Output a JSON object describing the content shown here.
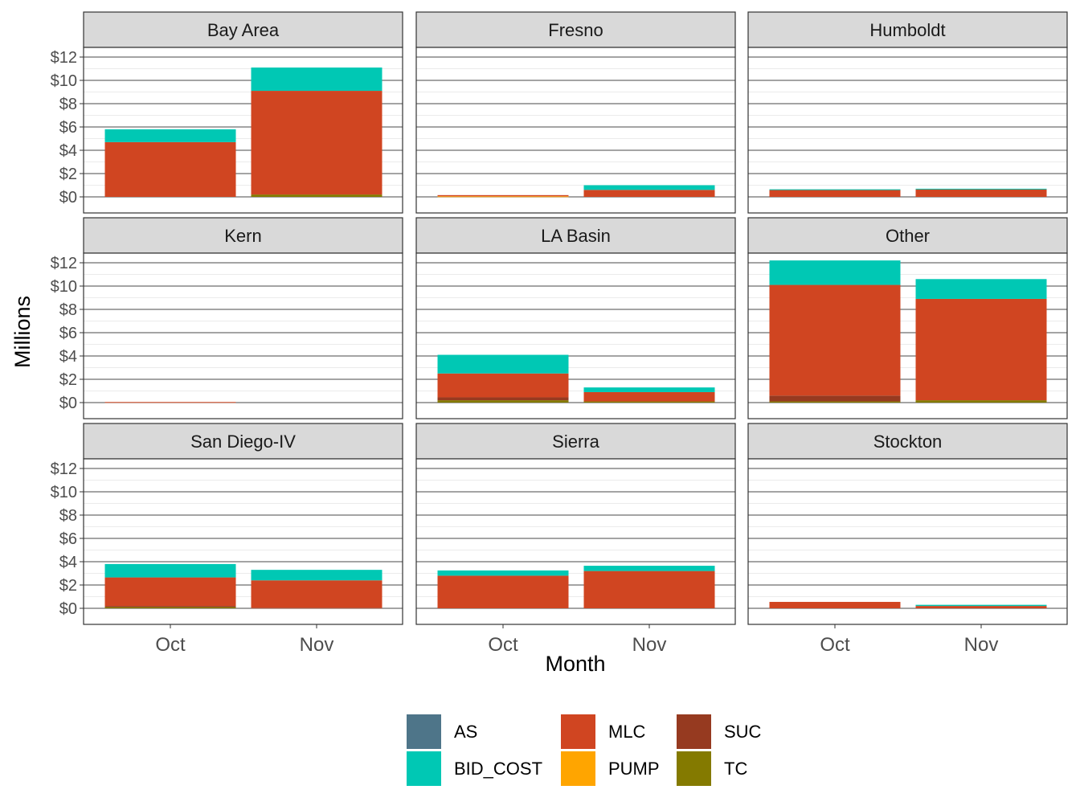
{
  "chart_data": {
    "type": "bar",
    "stacked": true,
    "facets": [
      "Bay Area",
      "Fresno",
      "Humboldt",
      "Kern",
      "LA Basin",
      "Other",
      "San Diego-IV",
      "Sierra",
      "Stockton"
    ],
    "categories": [
      "Oct",
      "Nov"
    ],
    "xlabel": "Month",
    "ylabel": "Millions",
    "ylim": [
      0,
      12
    ],
    "y_ticks": [
      0,
      2,
      4,
      6,
      8,
      10,
      12
    ],
    "y_tick_labels": [
      "$0",
      "$2",
      "$4",
      "$6",
      "$8",
      "$10",
      "$12"
    ],
    "grid": true,
    "legend_position": "bottom",
    "stack_order": [
      "TC",
      "PUMP",
      "AS",
      "SUC",
      "MLC",
      "BID_COST"
    ],
    "series_colors": {
      "AS": "#4e7589",
      "BID_COST": "#00c8b4",
      "MLC": "#d04521",
      "PUMP": "#ffa500",
      "SUC": "#963a20",
      "TC": "#847a00"
    },
    "legend": {
      "columns": [
        [
          "AS",
          "BID_COST"
        ],
        [
          "MLC",
          "PUMP"
        ],
        [
          "SUC",
          "TC"
        ]
      ]
    },
    "values": {
      "Bay Area": {
        "Oct": {
          "TC": 0.0,
          "PUMP": 0.0,
          "AS": 0.0,
          "SUC": 0.0,
          "MLC": 4.7,
          "BID_COST": 1.1
        },
        "Nov": {
          "TC": 0.2,
          "PUMP": 0.0,
          "AS": 0.0,
          "SUC": 0.0,
          "MLC": 8.9,
          "BID_COST": 2.0
        }
      },
      "Fresno": {
        "Oct": {
          "TC": 0.0,
          "PUMP": 0.05,
          "AS": 0.0,
          "SUC": 0.0,
          "MLC": 0.1,
          "BID_COST": 0.0
        },
        "Nov": {
          "TC": 0.0,
          "PUMP": 0.0,
          "AS": 0.0,
          "SUC": 0.0,
          "MLC": 0.6,
          "BID_COST": 0.4
        }
      },
      "Humboldt": {
        "Oct": {
          "TC": 0.0,
          "PUMP": 0.0,
          "AS": 0.0,
          "SUC": 0.0,
          "MLC": 0.6,
          "BID_COST": 0.05
        },
        "Nov": {
          "TC": 0.0,
          "PUMP": 0.0,
          "AS": 0.0,
          "SUC": 0.0,
          "MLC": 0.65,
          "BID_COST": 0.05
        }
      },
      "Kern": {
        "Oct": {
          "TC": 0.0,
          "PUMP": 0.0,
          "AS": 0.0,
          "SUC": 0.0,
          "MLC": 0.05,
          "BID_COST": 0.0
        },
        "Nov": {
          "TC": 0.0,
          "PUMP": 0.0,
          "AS": 0.0,
          "SUC": 0.0,
          "MLC": 0.0,
          "BID_COST": 0.0
        }
      },
      "LA Basin": {
        "Oct": {
          "TC": 0.2,
          "PUMP": 0.0,
          "AS": 0.0,
          "SUC": 0.25,
          "MLC": 2.05,
          "BID_COST": 1.6
        },
        "Nov": {
          "TC": 0.1,
          "PUMP": 0.0,
          "AS": 0.0,
          "SUC": 0.0,
          "MLC": 0.8,
          "BID_COST": 0.4
        }
      },
      "Other": {
        "Oct": {
          "TC": 0.1,
          "PUMP": 0.0,
          "AS": 0.0,
          "SUC": 0.5,
          "MLC": 9.5,
          "BID_COST": 2.1
        },
        "Nov": {
          "TC": 0.2,
          "PUMP": 0.0,
          "AS": 0.0,
          "SUC": 0.0,
          "MLC": 8.7,
          "BID_COST": 1.7
        }
      },
      "San Diego-IV": {
        "Oct": {
          "TC": 0.1,
          "PUMP": 0.0,
          "AS": 0.0,
          "SUC": 0.1,
          "MLC": 2.45,
          "BID_COST": 1.15
        },
        "Nov": {
          "TC": 0.0,
          "PUMP": 0.0,
          "AS": 0.0,
          "SUC": 0.05,
          "MLC": 2.35,
          "BID_COST": 0.9
        }
      },
      "Sierra": {
        "Oct": {
          "TC": 0.0,
          "PUMP": 0.0,
          "AS": 0.0,
          "SUC": 0.0,
          "MLC": 2.8,
          "BID_COST": 0.45
        },
        "Nov": {
          "TC": 0.0,
          "PUMP": 0.0,
          "AS": 0.0,
          "SUC": 0.0,
          "MLC": 3.2,
          "BID_COST": 0.45
        }
      },
      "Stockton": {
        "Oct": {
          "TC": 0.0,
          "PUMP": 0.0,
          "AS": 0.0,
          "SUC": 0.0,
          "MLC": 0.55,
          "BID_COST": 0.0
        },
        "Nov": {
          "TC": 0.0,
          "PUMP": 0.0,
          "AS": 0.0,
          "SUC": 0.0,
          "MLC": 0.2,
          "BID_COST": 0.1
        }
      }
    }
  }
}
